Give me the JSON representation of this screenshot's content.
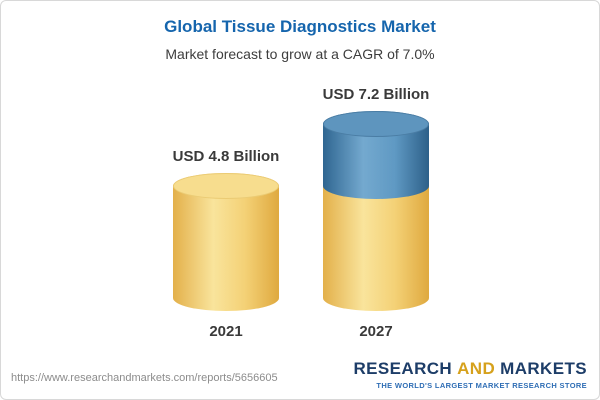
{
  "chart_data": {
    "type": "bar",
    "variant": "cylinder-3d",
    "title": "Global Tissue Diagnostics Market",
    "subtitle": "Market forecast to grow at a CAGR of 7.0%",
    "cagr": "7.0%",
    "unit": "USD Billion",
    "categories": [
      "2021",
      "2027"
    ],
    "values": [
      4.8,
      7.2
    ],
    "value_labels": [
      "USD 4.8 Billion",
      "USD 7.2 Billion"
    ],
    "ylim": [
      0,
      8
    ],
    "grid": false,
    "legend_position": "none",
    "colors": {
      "title": "#1565ad",
      "bar_base": "#f2cd6f",
      "bar_growth_segment": "#5a92bd",
      "label_text": "#3a3a3a"
    }
  },
  "footer": {
    "url": "https://www.researchandmarkets.com/reports/5656605",
    "logo": {
      "word1": "RESEARCH",
      "word2": "AND",
      "word3": "MARKETS",
      "tagline": "THE WORLD'S LARGEST MARKET RESEARCH STORE"
    }
  }
}
